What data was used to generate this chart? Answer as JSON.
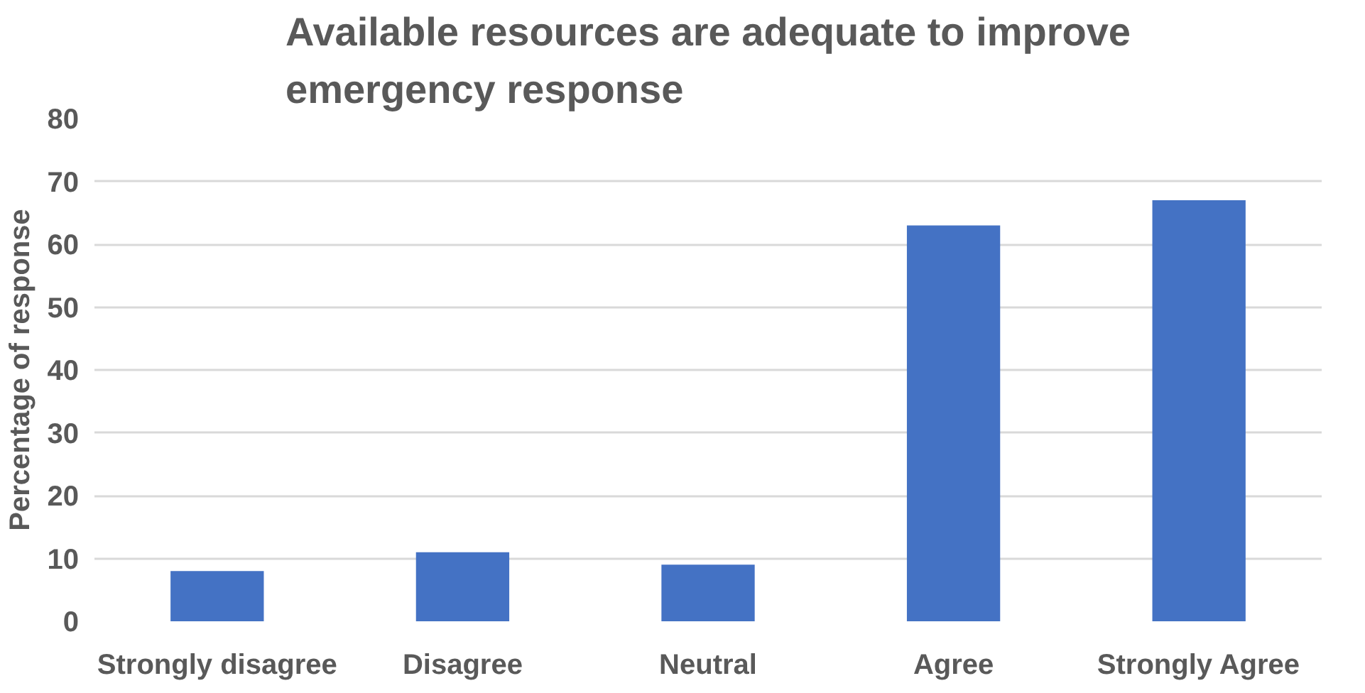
{
  "chart_data": {
    "type": "bar",
    "title": "Available resources are adequate to improve emergency response",
    "ylabel": "Percentage of response",
    "categories": [
      "Strongly disagree",
      "Disagree",
      "Neutral",
      "Agree",
      "Strongly Agree"
    ],
    "values": [
      8,
      11,
      9,
      63,
      67
    ],
    "color": "#4472c4",
    "ylim": [
      0,
      80
    ],
    "yticks": [
      0,
      10,
      20,
      30,
      40,
      50,
      60,
      70,
      80
    ],
    "grid": "y"
  }
}
